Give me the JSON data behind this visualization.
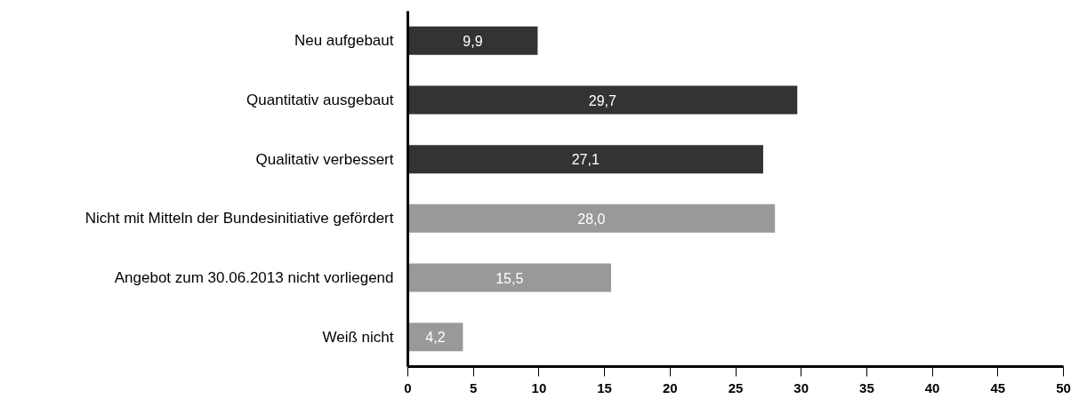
{
  "chart_data": {
    "type": "bar",
    "orientation": "horizontal",
    "categories": [
      "Neu aufgebaut",
      "Quantitativ ausgebaut",
      "Qualitativ verbessert",
      "Nicht mit Mitteln der Bundesinitiative gefördert",
      "Angebot zum 30.06.2013 nicht vorliegend",
      "Weiß nicht"
    ],
    "values": [
      9.9,
      29.7,
      27.1,
      28.0,
      15.5,
      4.2
    ],
    "value_labels": [
      "9,9",
      "29,7",
      "27,1",
      "28,0",
      "15,5",
      "4,2"
    ],
    "colors": [
      "#333333",
      "#333333",
      "#333333",
      "#999999",
      "#999999",
      "#999999"
    ],
    "xlim": [
      0,
      50
    ],
    "xticks": [
      0,
      5,
      10,
      15,
      20,
      25,
      30,
      35,
      40,
      45,
      50
    ]
  }
}
